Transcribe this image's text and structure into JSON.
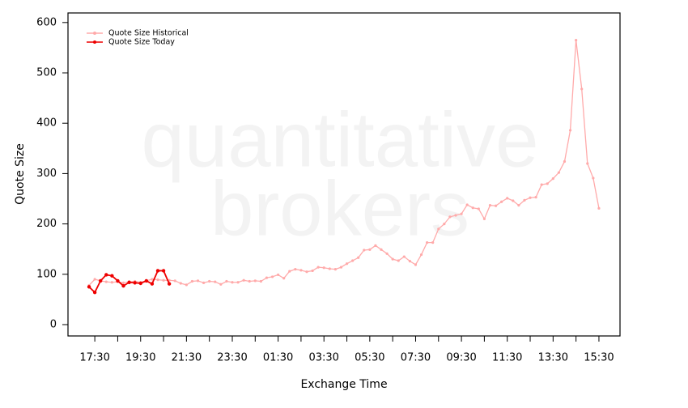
{
  "chart_data": {
    "type": "line",
    "watermark": [
      "quantitative",
      "brokers"
    ],
    "xlabel": "Exchange Time",
    "ylabel": "Quote Size",
    "x": [
      17.25,
      17.5,
      17.75,
      18,
      18.25,
      18.5,
      18.75,
      19,
      19.25,
      19.5,
      19.75,
      20,
      20.25,
      20.5,
      20.75,
      21,
      21.25,
      21.5,
      21.75,
      22,
      22.25,
      22.5,
      22.75,
      23,
      23.25,
      23.5,
      23.75,
      24,
      24.25,
      24.5,
      24.75,
      25,
      25.25,
      25.5,
      25.75,
      26,
      26.25,
      26.5,
      26.75,
      27,
      27.25,
      27.5,
      27.75,
      28,
      28.25,
      28.5,
      28.75,
      29,
      29.25,
      29.5,
      29.75,
      30,
      30.25,
      30.5,
      30.75,
      31,
      31.25,
      31.5,
      31.75,
      32,
      32.25,
      32.5,
      32.75,
      33,
      33.25,
      33.5,
      33.75,
      34,
      34.25,
      34.5,
      34.75,
      35,
      35.25,
      35.5,
      35.75,
      36,
      36.25,
      36.5,
      36.75,
      37,
      37.25,
      37.5,
      37.75,
      38,
      38.25,
      38.5,
      38.75,
      39,
      39.25,
      39.5
    ],
    "series": [
      {
        "name": "Quote Size Historical",
        "color": "#ffaaaa",
        "values": [
          78,
          90,
          87,
          85,
          84,
          85,
          83,
          85,
          86,
          84,
          87,
          90,
          89,
          88,
          88,
          87,
          82,
          79,
          86,
          87,
          83,
          86,
          85,
          80,
          86,
          84,
          84,
          88,
          86,
          87,
          86,
          93,
          95,
          99,
          92,
          106,
          110,
          108,
          105,
          107,
          114,
          113,
          111,
          110,
          114,
          121,
          127,
          133,
          148,
          149,
          157,
          149,
          141,
          130,
          127,
          135,
          126,
          119,
          139,
          163,
          163,
          190,
          200,
          214,
          217,
          220,
          238,
          232,
          230,
          210,
          237,
          236,
          244,
          251,
          246,
          237,
          247,
          252,
          253,
          278,
          280,
          290,
          302,
          324,
          386,
          565,
          468,
          320,
          291,
          231
        ]
      },
      {
        "name": "Quote Size Today",
        "color": "#ee0000",
        "values": [
          75,
          64,
          87,
          99,
          97,
          87,
          77,
          84,
          83,
          82,
          87,
          81,
          107,
          107,
          81,
          null,
          null,
          null,
          null,
          null,
          null,
          null,
          null,
          null,
          null,
          null,
          null,
          null,
          null,
          null,
          null,
          null,
          null,
          null,
          null,
          null,
          null,
          null,
          null,
          null,
          null,
          null,
          null,
          null,
          null,
          null,
          null,
          null,
          null,
          null,
          null,
          null,
          null,
          null,
          null,
          null,
          null,
          null,
          null,
          null,
          null,
          null,
          null,
          null,
          null,
          null,
          null,
          null,
          null,
          null,
          null,
          null,
          null,
          null,
          null,
          null,
          null,
          null,
          null,
          null,
          null,
          null,
          null,
          null,
          null,
          null,
          null,
          null,
          null,
          null
        ]
      }
    ],
    "xlim": [
      16.33,
      40.42
    ],
    "xticks": [
      {
        "value": 17.5,
        "label": "17:30"
      },
      {
        "value": 19.5,
        "label": "19:30"
      },
      {
        "value": 21.5,
        "label": "21:30"
      },
      {
        "value": 23.5,
        "label": "23:30"
      },
      {
        "value": 25.5,
        "label": "01:30"
      },
      {
        "value": 27.5,
        "label": "03:30"
      },
      {
        "value": 29.5,
        "label": "05:30"
      },
      {
        "value": 31.5,
        "label": "07:30"
      },
      {
        "value": 33.5,
        "label": "09:30"
      },
      {
        "value": 35.5,
        "label": "11:30"
      },
      {
        "value": 37.5,
        "label": "13:30"
      },
      {
        "value": 39.5,
        "label": "15:30"
      }
    ],
    "xminorticks": [
      18.5,
      20.5,
      22.5,
      24.5,
      26.5,
      28.5,
      30.5,
      32.5,
      34.5,
      36.5,
      38.5
    ],
    "ylim": [
      -22.5,
      619
    ],
    "yticks": [
      0,
      100,
      200,
      300,
      400,
      500,
      600
    ],
    "legend": "top-left"
  }
}
